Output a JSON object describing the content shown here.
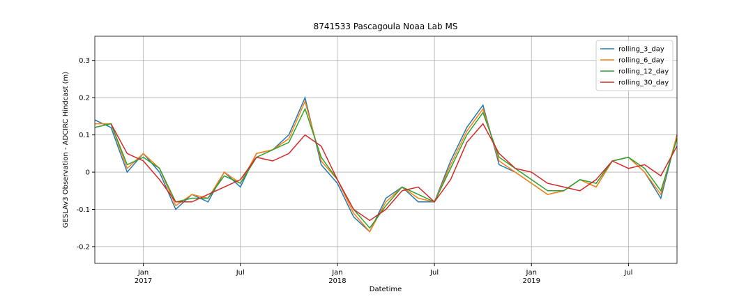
{
  "chart_data": {
    "type": "line",
    "title": "8741533 Pascagoula Noaa Lab MS",
    "xlabel": "Datetime",
    "ylabel": "GESLAv3 Observation - ADCIRC Hindcast (m)",
    "x": [
      "2016-10",
      "2016-11",
      "2016-12",
      "2017-01",
      "2017-02",
      "2017-03",
      "2017-04",
      "2017-05",
      "2017-06",
      "2017-07",
      "2017-08",
      "2017-09",
      "2017-10",
      "2017-11",
      "2017-12",
      "2018-01",
      "2018-02",
      "2018-03",
      "2018-04",
      "2018-05",
      "2018-06",
      "2018-07",
      "2018-08",
      "2018-09",
      "2018-10",
      "2018-11",
      "2018-12",
      "2019-01",
      "2019-02",
      "2019-03",
      "2019-04",
      "2019-05",
      "2019-06",
      "2019-07",
      "2019-08",
      "2019-09",
      "2019-10"
    ],
    "series": [
      {
        "name": "rolling_3_day",
        "color": "#1f77b4",
        "values": [
          0.14,
          0.12,
          0.0,
          0.05,
          0.0,
          -0.1,
          -0.06,
          -0.08,
          0.0,
          -0.04,
          0.05,
          0.06,
          0.1,
          0.2,
          0.02,
          -0.03,
          -0.12,
          -0.16,
          -0.07,
          -0.04,
          -0.08,
          -0.08,
          0.03,
          0.12,
          0.18,
          0.02,
          0.0,
          -0.03,
          -0.06,
          -0.05,
          -0.02,
          -0.04,
          0.03,
          0.04,
          0.0,
          -0.07,
          0.1
        ]
      },
      {
        "name": "rolling_6_day",
        "color": "#ff7f0e",
        "values": [
          0.13,
          0.13,
          0.01,
          0.05,
          0.01,
          -0.09,
          -0.06,
          -0.07,
          0.0,
          -0.03,
          0.05,
          0.06,
          0.09,
          0.19,
          0.03,
          -0.02,
          -0.11,
          -0.16,
          -0.08,
          -0.04,
          -0.07,
          -0.08,
          0.02,
          0.11,
          0.17,
          0.03,
          0.0,
          -0.03,
          -0.06,
          -0.05,
          -0.02,
          -0.04,
          0.03,
          0.04,
          0.0,
          -0.06,
          0.1
        ]
      },
      {
        "name": "rolling_12_day",
        "color": "#2ca02c",
        "values": [
          0.12,
          0.13,
          0.02,
          0.04,
          0.01,
          -0.08,
          -0.07,
          -0.07,
          -0.01,
          -0.03,
          0.04,
          0.06,
          0.08,
          0.17,
          0.04,
          -0.02,
          -0.1,
          -0.15,
          -0.09,
          -0.04,
          -0.06,
          -0.08,
          0.01,
          0.1,
          0.16,
          0.04,
          0.01,
          -0.02,
          -0.05,
          -0.05,
          -0.02,
          -0.03,
          0.03,
          0.04,
          0.01,
          -0.05,
          0.09
        ]
      },
      {
        "name": "rolling_30_day",
        "color": "#d62728",
        "values": [
          null,
          0.13,
          0.05,
          0.03,
          -0.02,
          -0.08,
          -0.08,
          -0.06,
          -0.04,
          -0.02,
          0.04,
          0.03,
          0.05,
          0.1,
          0.07,
          -0.02,
          -0.1,
          -0.13,
          -0.1,
          -0.05,
          -0.04,
          -0.08,
          -0.02,
          0.08,
          0.13,
          0.05,
          0.01,
          0.0,
          -0.03,
          -0.04,
          -0.05,
          -0.02,
          0.03,
          0.01,
          0.02,
          -0.01,
          0.07
        ]
      }
    ],
    "xlim": [
      "2016-10",
      "2019-10"
    ],
    "xticks": [
      {
        "value": "2017-01",
        "label": "Jan\n2017"
      },
      {
        "value": "2017-07",
        "label": "Jul"
      },
      {
        "value": "2018-01",
        "label": "Jan\n2018"
      },
      {
        "value": "2018-07",
        "label": "Jul"
      },
      {
        "value": "2019-01",
        "label": "Jan\n2019"
      },
      {
        "value": "2019-07",
        "label": "Jul"
      }
    ],
    "ylim": [
      -0.245,
      0.365
    ],
    "yticks": [
      -0.2,
      -0.1,
      0.0,
      0.1,
      0.2,
      0.3
    ],
    "grid": true,
    "legend": "upper right"
  }
}
